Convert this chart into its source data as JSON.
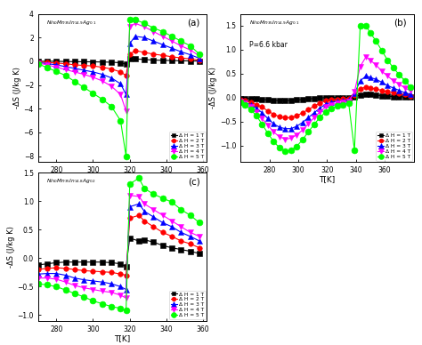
{
  "title_a": "Ni$_{50}$Mn$_{35}$In$_{14.9}$Ag$_{0.1}$",
  "title_b": "Ni$_{50}$Mn$_{35}$In$_{14.9}$Ag$_{0.1}$",
  "title_c": "Ni$_{50}$Mn$_{35}$In$_{14.8}$Ag$_{0.2}$",
  "pressure_b": "P=6.6 kbar",
  "xlabel": "T[K]",
  "ylabel": "-ΔS (J/kg K)",
  "legend_labels": [
    "Δ H = 1 T",
    "Δ H = 2 T",
    "Δ H = 3 T",
    "Δ H = 4 T",
    "Δ H = 5 T"
  ],
  "colors": [
    "black",
    "red",
    "blue",
    "magenta",
    "lime"
  ],
  "markers": [
    "s",
    "o",
    "^",
    "v",
    "o"
  ],
  "panel_labels": [
    "(a)",
    "(b)",
    "(c)"
  ],
  "T_a": [
    270,
    275,
    280,
    285,
    290,
    295,
    300,
    305,
    310,
    315,
    318,
    320,
    323,
    328,
    333,
    338,
    343,
    348,
    353,
    358
  ],
  "data_a_1T": [
    0.0,
    0.0,
    0.0,
    -0.02,
    -0.03,
    -0.04,
    -0.05,
    -0.06,
    -0.08,
    -0.12,
    -0.25,
    0.2,
    0.2,
    0.15,
    0.1,
    0.08,
    0.06,
    0.04,
    0.03,
    0.02
  ],
  "data_a_2T": [
    -0.05,
    -0.1,
    -0.15,
    -0.2,
    -0.3,
    -0.35,
    -0.4,
    -0.5,
    -0.65,
    -0.9,
    -1.2,
    0.6,
    0.9,
    0.75,
    0.6,
    0.5,
    0.38,
    0.28,
    0.2,
    0.1
  ],
  "data_a_3T": [
    -0.1,
    -0.2,
    -0.3,
    -0.45,
    -0.6,
    -0.75,
    -0.9,
    -1.1,
    -1.4,
    -1.9,
    -2.8,
    1.5,
    2.1,
    2.0,
    1.7,
    1.4,
    1.1,
    0.8,
    0.55,
    0.25
  ],
  "data_a_4T": [
    -0.15,
    -0.3,
    -0.5,
    -0.7,
    -0.9,
    -1.1,
    -1.35,
    -1.65,
    -2.1,
    -2.8,
    -4.2,
    2.9,
    3.2,
    2.9,
    2.5,
    2.1,
    1.7,
    1.3,
    0.95,
    0.45
  ],
  "data_a_5T": [
    -0.2,
    -0.55,
    -0.85,
    -1.2,
    -1.7,
    -2.2,
    -2.7,
    -3.2,
    -3.8,
    -5.0,
    -8.0,
    3.5,
    3.5,
    3.2,
    2.8,
    2.5,
    2.1,
    1.7,
    1.3,
    0.6
  ],
  "T_b": [
    260,
    263,
    267,
    271,
    275,
    279,
    283,
    287,
    291,
    295,
    299,
    303,
    307,
    311,
    315,
    319,
    323,
    327,
    331,
    335,
    339,
    343,
    347,
    350,
    354,
    358,
    362,
    366,
    370,
    374,
    378
  ],
  "data_b_1T": [
    -0.02,
    -0.02,
    -0.02,
    -0.03,
    -0.04,
    -0.05,
    -0.06,
    -0.06,
    -0.06,
    -0.06,
    -0.05,
    -0.04,
    -0.03,
    -0.02,
    -0.01,
    0.0,
    0.0,
    0.0,
    0.0,
    0.0,
    0.02,
    0.05,
    0.07,
    0.06,
    0.05,
    0.04,
    0.03,
    0.02,
    0.02,
    0.01,
    0.01
  ],
  "data_b_2T": [
    -0.05,
    -0.07,
    -0.1,
    -0.15,
    -0.2,
    -0.28,
    -0.35,
    -0.4,
    -0.42,
    -0.42,
    -0.38,
    -0.32,
    -0.25,
    -0.18,
    -0.12,
    -0.07,
    -0.05,
    -0.04,
    -0.03,
    -0.02,
    0.05,
    0.18,
    0.22,
    0.2,
    0.18,
    0.15,
    0.12,
    0.1,
    0.08,
    0.06,
    0.04
  ],
  "data_b_3T": [
    -0.06,
    -0.1,
    -0.15,
    -0.22,
    -0.32,
    -0.44,
    -0.55,
    -0.62,
    -0.65,
    -0.65,
    -0.6,
    -0.52,
    -0.42,
    -0.32,
    -0.22,
    -0.14,
    -0.1,
    -0.08,
    -0.06,
    -0.05,
    0.08,
    0.35,
    0.45,
    0.42,
    0.38,
    0.32,
    0.25,
    0.2,
    0.15,
    0.1,
    0.07
  ],
  "data_b_4T": [
    -0.08,
    -0.12,
    -0.2,
    -0.3,
    -0.44,
    -0.58,
    -0.72,
    -0.82,
    -0.87,
    -0.85,
    -0.78,
    -0.68,
    -0.55,
    -0.42,
    -0.3,
    -0.2,
    -0.15,
    -0.12,
    -0.1,
    -0.08,
    0.12,
    0.65,
    0.85,
    0.78,
    0.68,
    0.55,
    0.45,
    0.35,
    0.28,
    0.2,
    0.14
  ],
  "data_b_5T": [
    -0.1,
    -0.15,
    -0.25,
    -0.38,
    -0.56,
    -0.75,
    -0.92,
    -1.05,
    -1.12,
    -1.1,
    -1.02,
    -0.88,
    -0.72,
    -0.56,
    -0.42,
    -0.3,
    -0.22,
    -0.18,
    -0.15,
    -0.12,
    -1.1,
    1.5,
    1.5,
    1.35,
    1.18,
    0.98,
    0.78,
    0.62,
    0.48,
    0.35,
    0.22
  ],
  "T_c": [
    270,
    275,
    280,
    285,
    290,
    295,
    300,
    305,
    310,
    315,
    318,
    320,
    325,
    328,
    333,
    338,
    343,
    348,
    353,
    358
  ],
  "data_c_1T": [
    -0.12,
    -0.1,
    -0.08,
    -0.07,
    -0.07,
    -0.07,
    -0.07,
    -0.07,
    -0.08,
    -0.1,
    -0.15,
    0.35,
    0.3,
    0.32,
    0.28,
    0.22,
    0.18,
    0.15,
    0.12,
    0.08
  ],
  "data_c_2T": [
    -0.2,
    -0.18,
    -0.17,
    -0.18,
    -0.2,
    -0.22,
    -0.23,
    -0.24,
    -0.25,
    -0.28,
    -0.3,
    0.7,
    0.75,
    0.65,
    0.55,
    0.45,
    0.38,
    0.3,
    0.25,
    0.18
  ],
  "data_c_3T": [
    -0.28,
    -0.27,
    -0.27,
    -0.3,
    -0.35,
    -0.38,
    -0.4,
    -0.42,
    -0.45,
    -0.5,
    -0.55,
    0.9,
    0.95,
    0.82,
    0.72,
    0.62,
    0.55,
    0.45,
    0.38,
    0.3
  ],
  "data_c_4T": [
    -0.35,
    -0.35,
    -0.37,
    -0.42,
    -0.48,
    -0.52,
    -0.55,
    -0.58,
    -0.6,
    -0.65,
    -0.7,
    1.1,
    1.08,
    0.95,
    0.85,
    0.75,
    0.65,
    0.55,
    0.45,
    0.38
  ],
  "data_c_5T": [
    -0.45,
    -0.47,
    -0.5,
    -0.56,
    -0.62,
    -0.68,
    -0.75,
    -0.8,
    -0.85,
    -0.88,
    -0.92,
    1.3,
    1.4,
    1.22,
    1.12,
    1.05,
    0.98,
    0.85,
    0.75,
    0.62
  ],
  "xlim_a": [
    270,
    362
  ],
  "ylim_a": [
    -8.5,
    4.0
  ],
  "xticks_a": [
    280,
    300,
    320,
    340,
    360
  ],
  "yticks_a": [
    -8,
    -6,
    -4,
    -2,
    0,
    2,
    4
  ],
  "xlim_b": [
    260,
    380
  ],
  "ylim_b": [
    -1.35,
    1.75
  ],
  "xticks_b": [
    280,
    300,
    320,
    340,
    360
  ],
  "yticks_b": [
    -1.0,
    -0.5,
    0.0,
    0.5,
    1.0,
    1.5
  ],
  "xlim_c": [
    270,
    362
  ],
  "ylim_c": [
    -1.1,
    1.5
  ],
  "xticks_c": [
    280,
    300,
    320,
    340,
    360
  ],
  "yticks_c": [
    -1.0,
    -0.5,
    0.0,
    0.5,
    1.0,
    1.5
  ]
}
